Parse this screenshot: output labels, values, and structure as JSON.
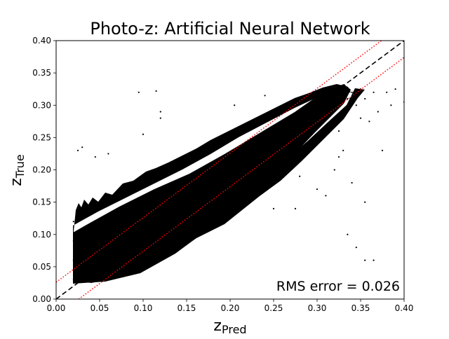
{
  "chart_data": {
    "type": "scatter",
    "title": "Photo-z: Artificial Neural Network",
    "xlabel": {
      "main": "z",
      "sub": "Pred"
    },
    "ylabel": {
      "main": "z",
      "sub": "True"
    },
    "xlim": [
      0.0,
      0.4
    ],
    "ylim": [
      0.0,
      0.4
    ],
    "xticks": [
      "0.00",
      "0.05",
      "0.10",
      "0.15",
      "0.20",
      "0.25",
      "0.30",
      "0.35",
      "0.40"
    ],
    "yticks": [
      "0.00",
      "0.05",
      "0.10",
      "0.15",
      "0.20",
      "0.25",
      "0.30",
      "0.35",
      "0.40"
    ],
    "grid": false,
    "annotation": "RMS error = 0.026",
    "rms_error": 0.026,
    "reference_lines": [
      {
        "kind": "identity",
        "slope": 1,
        "intercept": 0,
        "style": "dashed",
        "color": "#000000"
      },
      {
        "kind": "upper-bound",
        "slope": 1,
        "intercept": 0.026,
        "style": "dotted",
        "color": "#ff0000"
      },
      {
        "kind": "lower-bound",
        "slope": 1,
        "intercept": -0.026,
        "style": "dotted",
        "color": "#ff0000"
      }
    ],
    "points": [
      [
        0.02,
        0.03
      ],
      [
        0.02,
        0.06
      ],
      [
        0.02,
        0.09
      ],
      [
        0.02,
        0.12
      ],
      [
        0.022,
        0.045
      ],
      [
        0.022,
        0.075
      ],
      [
        0.025,
        0.035
      ],
      [
        0.025,
        0.055
      ],
      [
        0.025,
        0.085
      ],
      [
        0.028,
        0.04
      ],
      [
        0.03,
        0.03
      ],
      [
        0.03,
        0.065
      ],
      [
        0.03,
        0.1
      ],
      [
        0.035,
        0.04
      ],
      [
        0.035,
        0.08
      ],
      [
        0.04,
        0.05
      ],
      [
        0.04,
        0.09
      ],
      [
        0.045,
        0.06
      ],
      [
        0.045,
        0.11
      ],
      [
        0.05,
        0.045
      ],
      [
        0.05,
        0.075
      ],
      [
        0.055,
        0.07
      ],
      [
        0.055,
        0.12
      ],
      [
        0.06,
        0.08
      ],
      [
        0.06,
        0.05
      ],
      [
        0.065,
        0.095
      ],
      [
        0.07,
        0.085
      ],
      [
        0.07,
        0.13
      ],
      [
        0.075,
        0.06
      ],
      [
        0.08,
        0.1
      ],
      [
        0.08,
        0.14
      ],
      [
        0.085,
        0.09
      ],
      [
        0.09,
        0.11
      ],
      [
        0.09,
        0.075
      ],
      [
        0.095,
        0.12
      ],
      [
        0.1,
        0.1
      ],
      [
        0.1,
        0.15
      ],
      [
        0.105,
        0.08
      ],
      [
        0.11,
        0.12
      ],
      [
        0.11,
        0.16
      ],
      [
        0.115,
        0.1
      ],
      [
        0.12,
        0.13
      ],
      [
        0.12,
        0.09
      ],
      [
        0.125,
        0.15
      ],
      [
        0.13,
        0.125
      ],
      [
        0.13,
        0.17
      ],
      [
        0.135,
        0.105
      ],
      [
        0.14,
        0.145
      ],
      [
        0.14,
        0.115
      ],
      [
        0.145,
        0.16
      ],
      [
        0.15,
        0.15
      ],
      [
        0.15,
        0.12
      ],
      [
        0.155,
        0.175
      ],
      [
        0.16,
        0.16
      ],
      [
        0.16,
        0.13
      ],
      [
        0.165,
        0.18
      ],
      [
        0.17,
        0.17
      ],
      [
        0.17,
        0.14
      ],
      [
        0.175,
        0.19
      ],
      [
        0.18,
        0.18
      ],
      [
        0.18,
        0.15
      ],
      [
        0.185,
        0.2
      ],
      [
        0.19,
        0.185
      ],
      [
        0.19,
        0.16
      ],
      [
        0.195,
        0.205
      ],
      [
        0.2,
        0.2
      ],
      [
        0.2,
        0.175
      ],
      [
        0.205,
        0.215
      ],
      [
        0.21,
        0.205
      ],
      [
        0.21,
        0.185
      ],
      [
        0.215,
        0.22
      ],
      [
        0.22,
        0.215
      ],
      [
        0.22,
        0.195
      ],
      [
        0.225,
        0.23
      ],
      [
        0.23,
        0.225
      ],
      [
        0.23,
        0.205
      ],
      [
        0.235,
        0.24
      ],
      [
        0.24,
        0.235
      ],
      [
        0.24,
        0.215
      ],
      [
        0.245,
        0.25
      ],
      [
        0.25,
        0.245
      ],
      [
        0.25,
        0.225
      ],
      [
        0.255,
        0.26
      ],
      [
        0.26,
        0.255
      ],
      [
        0.26,
        0.235
      ],
      [
        0.265,
        0.265
      ],
      [
        0.27,
        0.265
      ],
      [
        0.27,
        0.245
      ],
      [
        0.275,
        0.275
      ],
      [
        0.28,
        0.275
      ],
      [
        0.28,
        0.255
      ],
      [
        0.285,
        0.285
      ],
      [
        0.29,
        0.285
      ],
      [
        0.29,
        0.265
      ],
      [
        0.295,
        0.295
      ],
      [
        0.3,
        0.3
      ],
      [
        0.3,
        0.275
      ],
      [
        0.305,
        0.305
      ],
      [
        0.31,
        0.31
      ],
      [
        0.31,
        0.285
      ],
      [
        0.315,
        0.315
      ],
      [
        0.32,
        0.32
      ],
      [
        0.32,
        0.295
      ],
      [
        0.325,
        0.325
      ],
      [
        0.33,
        0.315
      ],
      [
        0.335,
        0.31
      ],
      [
        0.34,
        0.32
      ],
      [
        0.345,
        0.3
      ],
      [
        0.35,
        0.325
      ],
      [
        0.03,
        0.235
      ],
      [
        0.025,
        0.23
      ],
      [
        0.045,
        0.22
      ],
      [
        0.06,
        0.225
      ],
      [
        0.095,
        0.32
      ],
      [
        0.115,
        0.322
      ],
      [
        0.12,
        0.29
      ],
      [
        0.205,
        0.3
      ],
      [
        0.24,
        0.315
      ],
      [
        0.1,
        0.255
      ],
      [
        0.12,
        0.28
      ],
      [
        0.2,
        0.15
      ],
      [
        0.25,
        0.14
      ],
      [
        0.275,
        0.14
      ],
      [
        0.3,
        0.17
      ],
      [
        0.32,
        0.2
      ],
      [
        0.33,
        0.23
      ],
      [
        0.335,
        0.1
      ],
      [
        0.345,
        0.08
      ],
      [
        0.355,
        0.06
      ],
      [
        0.365,
        0.06
      ],
      [
        0.375,
        0.23
      ],
      [
        0.385,
        0.3
      ],
      [
        0.39,
        0.325
      ],
      [
        0.4,
        0.305
      ],
      [
        0.38,
        0.32
      ],
      [
        0.36,
        0.275
      ],
      [
        0.31,
        0.16
      ],
      [
        0.28,
        0.19
      ],
      [
        0.3,
        0.27
      ],
      [
        0.325,
        0.26
      ],
      [
        0.35,
        0.28
      ],
      [
        0.325,
        0.22
      ],
      [
        0.34,
        0.18
      ],
      [
        0.355,
        0.15
      ],
      [
        0.37,
        0.29
      ],
      [
        0.355,
        0.31
      ],
      [
        0.365,
        0.32
      ]
    ]
  }
}
